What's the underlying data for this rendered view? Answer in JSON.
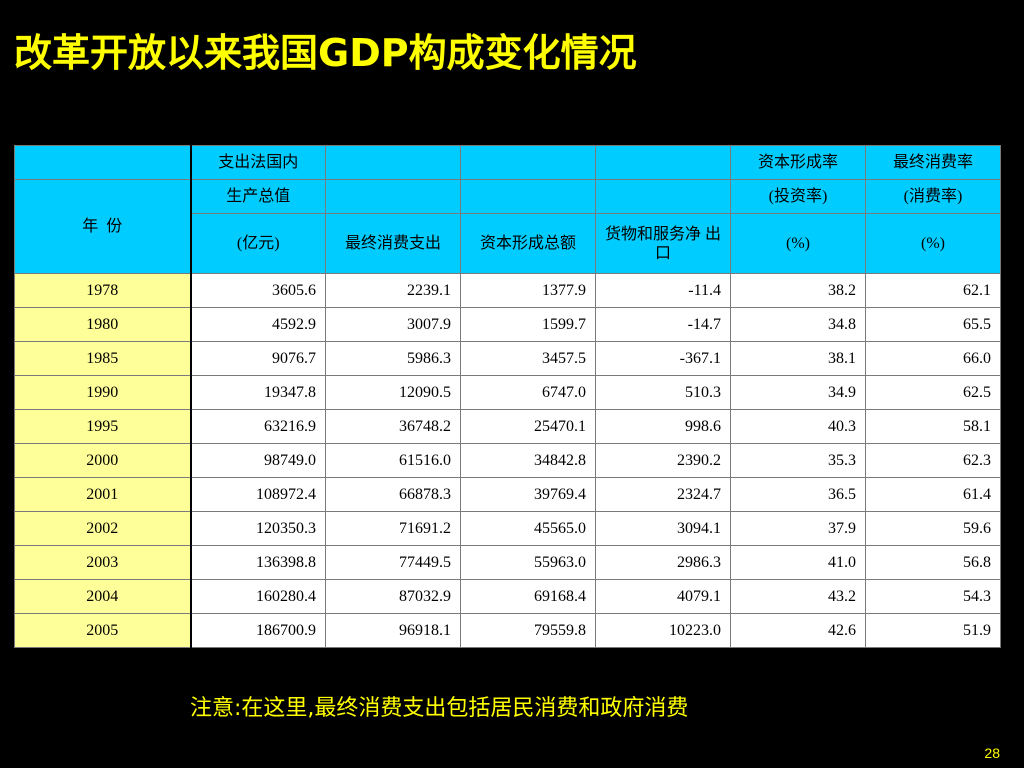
{
  "slide": {
    "title": "改革开放以来我国GDP构成变化情况",
    "note": "注意:在这里,最终消费支出包括居民消费和政府消费",
    "page_number": "28"
  },
  "table": {
    "header": {
      "year_label": "年  份",
      "gdp_line1": "支出法国内",
      "gdp_line2": "生产总值",
      "gdp_unit": "(亿元)",
      "consumption": "最终消费支出",
      "capital_formation": "资本形成总额",
      "net_exports": "货物和服务净 出 口",
      "investment_rate_line1": "资本形成率",
      "investment_rate_line2": "(投资率)",
      "investment_rate_unit": "(%)",
      "consumption_rate_line1": "最终消费率",
      "consumption_rate_line2": "(消费率)",
      "consumption_rate_unit": "(%)"
    },
    "rows": [
      {
        "year": "1978",
        "gdp": "3605.6",
        "consumption": "2239.1",
        "capital": "1377.9",
        "net_exports": "-11.4",
        "investment_rate": "38.2",
        "consumption_rate": "62.1"
      },
      {
        "year": "1980",
        "gdp": "4592.9",
        "consumption": "3007.9",
        "capital": "1599.7",
        "net_exports": "-14.7",
        "investment_rate": "34.8",
        "consumption_rate": "65.5"
      },
      {
        "year": "1985",
        "gdp": "9076.7",
        "consumption": "5986.3",
        "capital": "3457.5",
        "net_exports": "-367.1",
        "investment_rate": "38.1",
        "consumption_rate": "66.0"
      },
      {
        "year": "1990",
        "gdp": "19347.8",
        "consumption": "12090.5",
        "capital": "6747.0",
        "net_exports": "510.3",
        "investment_rate": "34.9",
        "consumption_rate": "62.5"
      },
      {
        "year": "1995",
        "gdp": "63216.9",
        "consumption": "36748.2",
        "capital": "25470.1",
        "net_exports": "998.6",
        "investment_rate": "40.3",
        "consumption_rate": "58.1"
      },
      {
        "year": "2000",
        "gdp": "98749.0",
        "consumption": "61516.0",
        "capital": "34842.8",
        "net_exports": "2390.2",
        "investment_rate": "35.3",
        "consumption_rate": "62.3"
      },
      {
        "year": "2001",
        "gdp": "108972.4",
        "consumption": "66878.3",
        "capital": "39769.4",
        "net_exports": "2324.7",
        "investment_rate": "36.5",
        "consumption_rate": "61.4"
      },
      {
        "year": "2002",
        "gdp": "120350.3",
        "consumption": "71691.2",
        "capital": "45565.0",
        "net_exports": "3094.1",
        "investment_rate": "37.9",
        "consumption_rate": "59.6"
      },
      {
        "year": "2003",
        "gdp": "136398.8",
        "consumption": "77449.5",
        "capital": "55963.0",
        "net_exports": "2986.3",
        "investment_rate": "41.0",
        "consumption_rate": "56.8"
      },
      {
        "year": "2004",
        "gdp": "160280.4",
        "consumption": "87032.9",
        "capital": "69168.4",
        "net_exports": "4079.1",
        "investment_rate": "43.2",
        "consumption_rate": "54.3"
      },
      {
        "year": "2005",
        "gdp": "186700.9",
        "consumption": "96918.1",
        "capital": "79559.8",
        "net_exports": "10223.0",
        "investment_rate": "42.6",
        "consumption_rate": "51.9"
      }
    ]
  }
}
